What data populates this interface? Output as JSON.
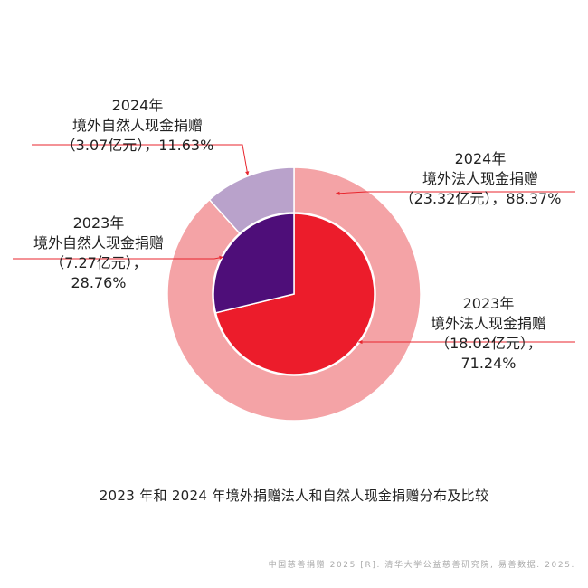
{
  "chart_data": {
    "type": "pie",
    "title": "2023 年和 2024 年境外捐赠法人和自然人现金捐赠分布及比较",
    "source": "中国慈善捐赠 2025 [R]. 清华大学公益慈善研究院, 易善数据. 2025.",
    "rings": [
      {
        "name": "2024年",
        "ring": "outer",
        "slices": [
          {
            "id": "2024-legal",
            "year": "2024年",
            "label": "境外法人现金捐赠",
            "value_text": "（23.32亿元），88.37%",
            "value": 23.32,
            "percent": 88.37,
            "color": "#f4a3a6"
          },
          {
            "id": "2024-natural",
            "year": "2024年",
            "label": "境外自然人现金捐赠",
            "value_text": "（3.07亿元），11.63%",
            "value": 3.07,
            "percent": 11.63,
            "color": "#b9a2cb"
          }
        ]
      },
      {
        "name": "2023年",
        "ring": "inner",
        "slices": [
          {
            "id": "2023-legal",
            "year": "2023年",
            "label": "境外法人现金捐赠",
            "value_text": "（18.02亿元），",
            "percent_text": "71.24%",
            "value": 18.02,
            "percent": 71.24,
            "color": "#ec1c2b"
          },
          {
            "id": "2023-natural",
            "year": "2023年",
            "label": "境外自然人现金捐赠",
            "value_text": "（7.27亿元），",
            "percent_text": "28.76%",
            "value": 7.27,
            "percent": 28.76,
            "color": "#4e0e79"
          }
        ]
      }
    ],
    "leader_line_color": "#e8262e"
  }
}
